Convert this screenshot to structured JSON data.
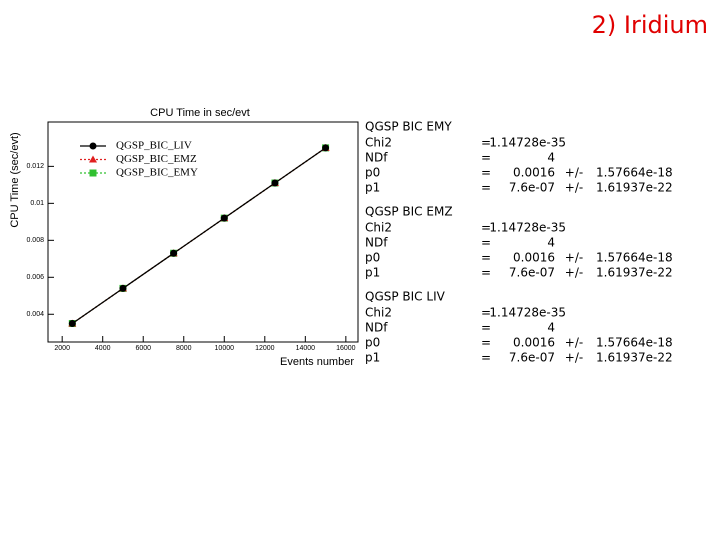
{
  "slide_title": "2) Iridium",
  "chart_data": {
    "type": "line",
    "title": "CPU Time in sec/evt",
    "x_label": "Events number",
    "y_label": "CPU Time (sec/evt)",
    "x": [
      2500,
      5000,
      7500,
      10000,
      12500,
      15000
    ],
    "series": [
      {
        "name": "QGSP_BIC_LIV",
        "color": "#000000",
        "marker": "circle",
        "line": "solid",
        "values": [
          0.0035,
          0.0054,
          0.0073,
          0.0092,
          0.0111,
          0.013
        ]
      },
      {
        "name": "QGSP_BIC_EMZ",
        "color": "#e02020",
        "marker": "triangle",
        "line": "dotted",
        "values": [
          0.0035,
          0.0054,
          0.0073,
          0.0092,
          0.0111,
          0.013
        ]
      },
      {
        "name": "QGSP_BIC_EMY",
        "color": "#30c030",
        "marker": "square",
        "line": "dotted",
        "values": [
          0.0035,
          0.0054,
          0.0073,
          0.0092,
          0.0111,
          0.013
        ]
      }
    ],
    "xlim": [
      1300,
      16600
    ],
    "xticks": [
      2000,
      4000,
      6000,
      8000,
      10000,
      12000,
      14000,
      16000
    ],
    "ylim": [
      0.0025,
      0.0144
    ],
    "yticks": [
      0.004,
      0.006,
      0.008,
      0.01,
      0.012
    ]
  },
  "fits": [
    {
      "name": "QGSP BIC EMY",
      "rows": [
        [
          "Chi2",
          "=",
          "1.14728e-35"
        ],
        [
          "NDf",
          "=",
          "4"
        ],
        [
          "p0",
          "=",
          "0.0016",
          "+/-",
          "1.57664e-18"
        ],
        [
          "p1",
          "=",
          "7.6e-07",
          "+/-",
          "1.61937e-22"
        ]
      ]
    },
    {
      "name": "QGSP BIC EMZ",
      "rows": [
        [
          "Chi2",
          "=",
          "1.14728e-35"
        ],
        [
          "NDf",
          "=",
          "4"
        ],
        [
          "p0",
          "=",
          "0.0016",
          "+/-",
          "1.57664e-18"
        ],
        [
          "p1",
          "=",
          "7.6e-07",
          "+/-",
          "1.61937e-22"
        ]
      ]
    },
    {
      "name": "QGSP BIC LIV",
      "rows": [
        [
          "Chi2",
          "=",
          "1.14728e-35"
        ],
        [
          "NDf",
          "=",
          "4"
        ],
        [
          "p0",
          "=",
          "0.0016",
          "+/-",
          "1.57664e-18"
        ],
        [
          "p1",
          "=",
          "7.6e-07",
          "+/-",
          "1.61937e-22"
        ]
      ]
    }
  ]
}
